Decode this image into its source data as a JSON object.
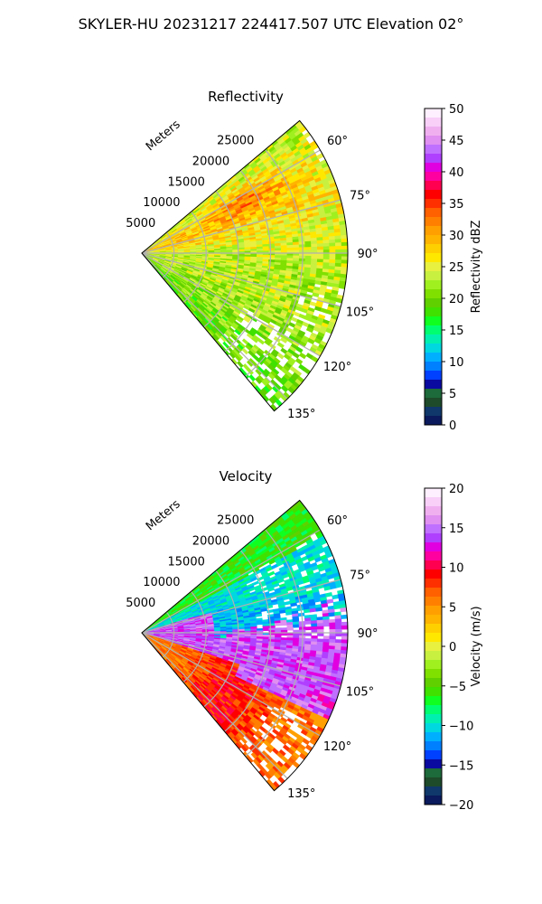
{
  "figure": {
    "title": "SKYLER-HU  20231217  224417.507 UTC Elevation 02°"
  },
  "chart_data": [
    {
      "type": "heatmap",
      "projection": "polar-sector",
      "title": "Reflectivity",
      "radial_label": "Meters",
      "theta_range_deg": [
        50,
        140
      ],
      "r_max_m": 32000,
      "r_ticks": [
        5000,
        10000,
        15000,
        20000,
        25000
      ],
      "r_tick_labels": [
        "5000",
        "10000",
        "15000",
        "20000",
        "25000"
      ],
      "theta_ticks": [
        60,
        75,
        90,
        105,
        120,
        135
      ],
      "theta_tick_labels": [
        "60°",
        "75°",
        "90°",
        "105°",
        "120°",
        "135°"
      ],
      "grid": true,
      "colorbar": {
        "label": "Reflectivity dBZ",
        "range": [
          0,
          50
        ],
        "ticks": [
          0,
          5,
          10,
          15,
          20,
          25,
          30,
          35,
          40,
          45,
          50
        ],
        "tick_labels": [
          "0",
          "5",
          "10",
          "15",
          "20",
          "25",
          "30",
          "35",
          "40",
          "45",
          "50"
        ],
        "colors": [
          "#0a1a5c",
          "#10386a",
          "#1e4b2a",
          "#1d6a3a",
          "#0a0aa0",
          "#0040ff",
          "#0080ff",
          "#00b0ff",
          "#00d8e0",
          "#00f0b0",
          "#00ff70",
          "#10ff20",
          "#40e000",
          "#60d000",
          "#80e000",
          "#a0f020",
          "#c8f040",
          "#e8f040",
          "#ffe800",
          "#ffd000",
          "#ffb400",
          "#ffa000",
          "#ff8000",
          "#ff6000",
          "#ff3000",
          "#ff0000",
          "#ff0050",
          "#ff00a0",
          "#e000e0",
          "#b040ff",
          "#c070ff",
          "#e090f0",
          "#f0b0f0",
          "#f8d0f8",
          "#fff0ff"
        ]
      },
      "field_description_values_dbz": {
        "dominant_range": [
          22,
          36
        ],
        "peak_band_azimuth_deg": [
          60,
          80
        ],
        "peak_value": 37
      }
    },
    {
      "type": "heatmap",
      "projection": "polar-sector",
      "title": "Velocity",
      "radial_label": "Meters",
      "theta_range_deg": [
        50,
        140
      ],
      "r_max_m": 32000,
      "r_ticks": [
        5000,
        10000,
        15000,
        20000,
        25000
      ],
      "r_tick_labels": [
        "5000",
        "10000",
        "15000",
        "20000",
        "25000"
      ],
      "theta_ticks": [
        60,
        75,
        90,
        105,
        120,
        135
      ],
      "theta_tick_labels": [
        "60°",
        "75°",
        "90°",
        "105°",
        "120°",
        "135°"
      ],
      "grid": true,
      "colorbar": {
        "label": "Velocity (m/s)",
        "range": [
          -20,
          20
        ],
        "ticks": [
          -20,
          -15,
          -10,
          -5,
          0,
          5,
          10,
          15,
          20
        ],
        "tick_labels": [
          "−20",
          "−15",
          "−10",
          "−5",
          "0",
          "5",
          "10",
          "15",
          "20"
        ],
        "colors": [
          "#0a1a5c",
          "#10386a",
          "#1e4b2a",
          "#1d6a3a",
          "#0a0aa0",
          "#0040ff",
          "#0080ff",
          "#00b0ff",
          "#00d8e0",
          "#00f0b0",
          "#00ff70",
          "#10ff20",
          "#40e000",
          "#60d000",
          "#80e000",
          "#a0f020",
          "#c8f040",
          "#e8f040",
          "#ffe800",
          "#ffd000",
          "#ffb400",
          "#ffa000",
          "#ff8000",
          "#ff6000",
          "#ff3000",
          "#ff0000",
          "#ff0050",
          "#ff00a0",
          "#e000e0",
          "#b040ff",
          "#c070ff",
          "#e090f0",
          "#f0b0f0",
          "#f8d0f8",
          "#fff0ff"
        ]
      },
      "field_description_values_ms": {
        "north_sector_range": [
          -12,
          -6
        ],
        "east_center_range": [
          12,
          16
        ],
        "south_sector_range": [
          3,
          10
        ]
      }
    }
  ]
}
